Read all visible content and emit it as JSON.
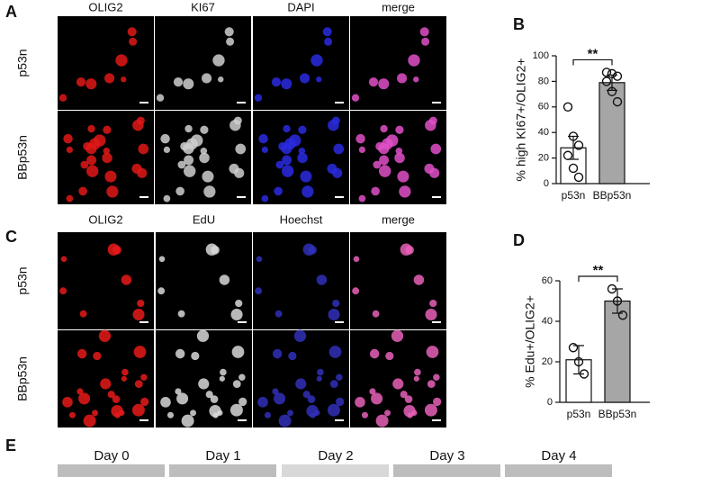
{
  "panel_labels": [
    "A",
    "B",
    "C",
    "D",
    "E"
  ],
  "panel_a": {
    "columns": [
      "OLIG2",
      "KI67",
      "DAPI",
      "merge"
    ],
    "rows": [
      "p53n",
      "BBp53n"
    ]
  },
  "panel_c": {
    "columns": [
      "OLIG2",
      "EdU",
      "Hoechst",
      "merge"
    ],
    "rows": [
      "p53n",
      "BBp53n"
    ]
  },
  "panel_e": {
    "columns": [
      "Day 0",
      "Day 1",
      "Day 2",
      "Day 3",
      "Day 4"
    ]
  },
  "chart_data": [
    {
      "type": "bar",
      "ylabel": "% high KI67+/OLIG2+",
      "categories": [
        "p53n",
        "BBp53n"
      ],
      "values": [
        28,
        79
      ],
      "errors": [
        9,
        6
      ],
      "points": [
        [
          60,
          37,
          30,
          22,
          12,
          5
        ],
        [
          87,
          86,
          84,
          80,
          72,
          64
        ]
      ],
      "colors": [
        "#ffffff",
        "#a6a6a6"
      ],
      "ylim": [
        0,
        100
      ],
      "yticks": [
        0,
        20,
        40,
        60,
        80,
        100
      ],
      "significance": "**"
    },
    {
      "type": "bar",
      "ylabel": "% Edu+/OLIG2+",
      "categories": [
        "p53n",
        "BBp53n"
      ],
      "values": [
        21,
        50
      ],
      "errors": [
        7,
        6
      ],
      "points": [
        [
          27,
          20,
          14
        ],
        [
          56,
          50,
          43
        ]
      ],
      "colors": [
        "#ffffff",
        "#a6a6a6"
      ],
      "ylim": [
        0,
        60
      ],
      "yticks": [
        0,
        20,
        40,
        60
      ],
      "significance": "**"
    }
  ]
}
